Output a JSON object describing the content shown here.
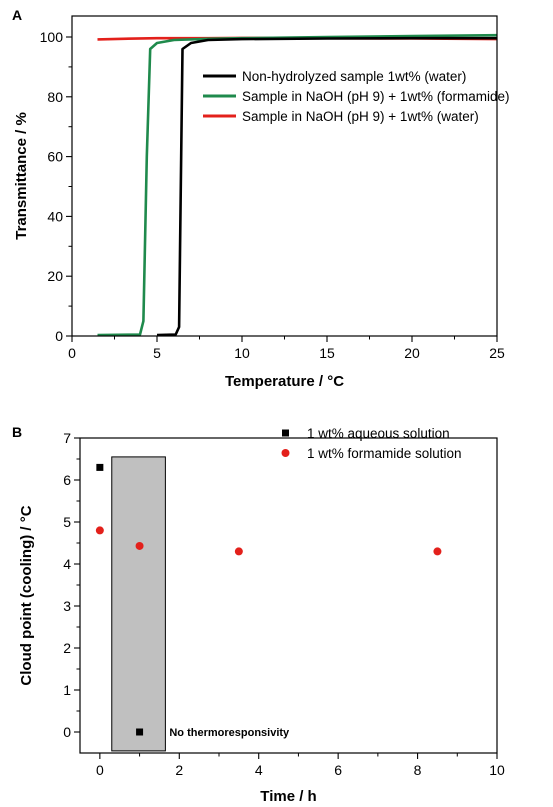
{
  "chart_data": [
    {
      "panel": "A",
      "type": "line",
      "xlabel": "Temperature / °C",
      "ylabel": "Transmittance / %",
      "xlim": [
        0,
        25
      ],
      "ylim": [
        0,
        105
      ],
      "xticks": [
        "0",
        "5",
        "10",
        "15",
        "20",
        "25"
      ],
      "yticks": [
        "0",
        "20",
        "40",
        "60",
        "80",
        "100"
      ],
      "legend_position": "right",
      "grid": false,
      "series": [
        {
          "name": "Non-hydrolyzed sample 1wt% (water)",
          "color": "#000000",
          "x": [
            5.0,
            6.1,
            6.3,
            6.4,
            6.5,
            7.0,
            8.0,
            10.0,
            15.0,
            20.0,
            25.0
          ],
          "y": [
            0.3,
            0.5,
            3,
            50,
            96,
            98,
            99,
            99.3,
            99.5,
            99.6,
            99.6
          ]
        },
        {
          "name": "Sample in NaOH (pH 9) + 1wt% (formamide)",
          "color": "#1f8a4c",
          "x": [
            1.5,
            4.0,
            4.2,
            4.4,
            4.6,
            5.0,
            6.0,
            8.0,
            10.0,
            15.0,
            20.0,
            25.0
          ],
          "y": [
            0.3,
            0.5,
            5,
            60,
            96,
            98,
            99,
            99.4,
            99.6,
            100,
            100.3,
            100.6
          ]
        },
        {
          "name": "Sample in NaOH (pH 9) + 1wt% (water)",
          "color": "#e3201b",
          "x": [
            1.5,
            3.0,
            5.0,
            8.0,
            10.0,
            15.0,
            20.0,
            25.0
          ],
          "y": [
            99.2,
            99.4,
            99.6,
            99.6,
            99.7,
            99.6,
            99.5,
            99.3
          ]
        }
      ]
    },
    {
      "panel": "B",
      "type": "scatter",
      "xlabel": "Time / h",
      "ylabel": "Cloud point (cooling) / °C",
      "xlim": [
        -0.5,
        10
      ],
      "ylim": [
        -0.5,
        7
      ],
      "xticks": [
        "0",
        "2",
        "4",
        "6",
        "8",
        "10"
      ],
      "yticks": [
        "0",
        "1",
        "2",
        "3",
        "4",
        "5",
        "6",
        "7"
      ],
      "legend_position": "top-right",
      "grid": false,
      "series": [
        {
          "name": "1 wt% aqueous solution",
          "color": "#000000",
          "marker": "square",
          "x": [
            0,
            1
          ],
          "y": [
            6.3,
            0
          ]
        },
        {
          "name": "1 wt% formamide solution",
          "color": "#e3201b",
          "marker": "circle",
          "x": [
            0,
            1,
            3.5,
            8.5
          ],
          "y": [
            4.8,
            4.43,
            4.3,
            4.3
          ]
        }
      ],
      "shaded_region": {
        "x": [
          0.3,
          1.65
        ],
        "y": [
          -0.45,
          6.55
        ],
        "color": "#c0c0c0"
      },
      "annotation": {
        "text": "No thermoresponsivity",
        "x": 1.7,
        "y": 0
      }
    }
  ]
}
